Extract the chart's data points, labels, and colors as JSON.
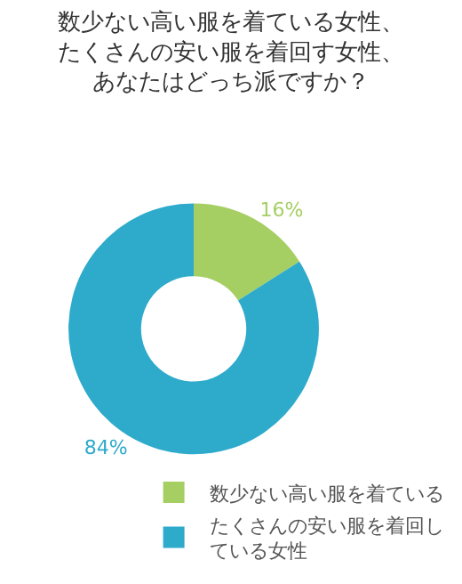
{
  "chart_data": {
    "type": "donut",
    "title": "数少ない高い服を着ている女性、たくさんの安い服を着回す女性、あなたはどっち派ですか？",
    "categories": [
      "数少ない高い服を着ている",
      "たくさんの安い服を着回している女性"
    ],
    "values": [
      16,
      84
    ],
    "value_labels": [
      "16%",
      "84%"
    ],
    "colors": [
      "#a5cf63",
      "#2eaacb"
    ],
    "legend": "bottom right"
  }
}
